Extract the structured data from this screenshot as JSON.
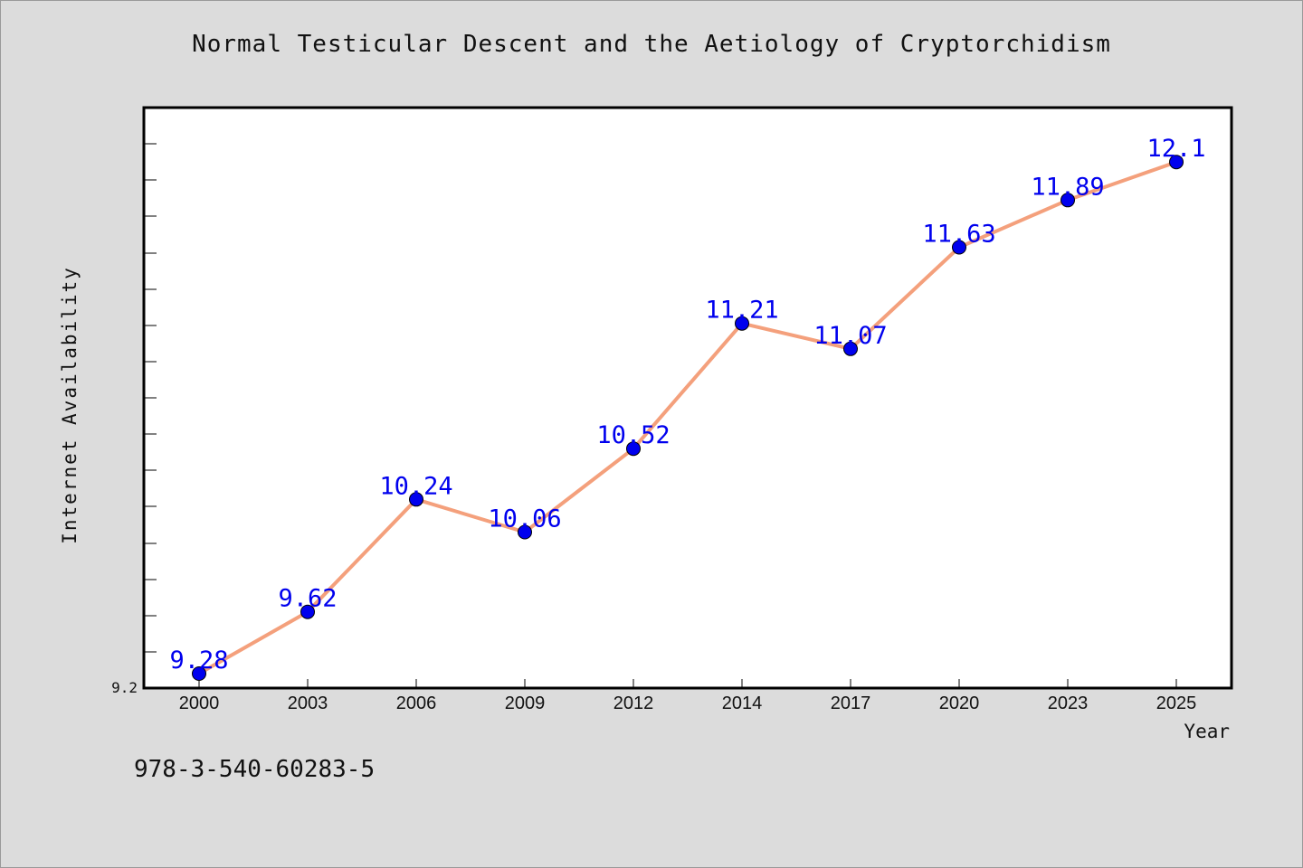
{
  "chart_data": {
    "type": "line",
    "title": "Normal Testicular Descent and the Aetiology of Cryptorchidism",
    "xlabel": "Year",
    "ylabel": "Internet Availability",
    "categories": [
      "2000",
      "2003",
      "2006",
      "2009",
      "2012",
      "2014",
      "2017",
      "2020",
      "2023",
      "2025"
    ],
    "series": [
      {
        "values": [
          9.28,
          9.62,
          10.24,
          10.06,
          10.52,
          11.21,
          11.07,
          11.63,
          11.89,
          12.1
        ]
      }
    ],
    "data_labels": [
      "9.28",
      "9.62",
      "10.24",
      "10.06",
      "10.52",
      "11.21",
      "11.07",
      "11.63",
      "11.89",
      "12.1"
    ],
    "y_tick_label": "9.2",
    "ylim": [
      9.2,
      12.4
    ],
    "y_minor_step": 0.2,
    "grid": false,
    "legend": "none",
    "colors": {
      "line": "#f4a07c",
      "marker": "#0000ee",
      "label": "#0000ee",
      "background": "#dcdcdc",
      "plot_background": "#ffffff"
    }
  },
  "footer": {
    "isbn": "978-3-540-60283-5"
  }
}
